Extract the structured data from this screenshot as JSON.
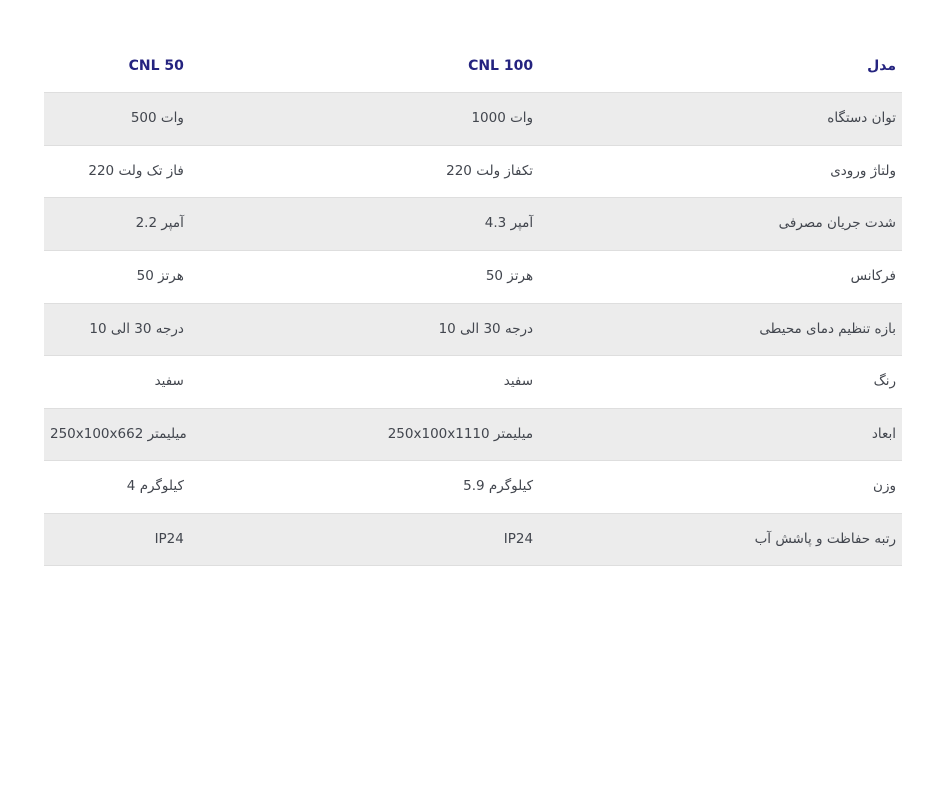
{
  "page": {
    "background": "#ffffff"
  },
  "spec_table": {
    "columns": [
      {
        "id": "model",
        "header": "مدل"
      },
      {
        "id": "cnl100",
        "header": "CNL 100"
      },
      {
        "id": "cnl50",
        "header": "CNL 50"
      }
    ],
    "rows": [
      {
        "model": "توان دستگاه",
        "cnl100": "1000 وات",
        "cnl50": "500 وات"
      },
      {
        "model": "ولتاژ ورودی",
        "cnl100": "220 ولت تکفاز",
        "cnl50": "220 ولت تک فاز"
      },
      {
        "model": "شدت جریان مصرفی",
        "cnl100": "4.3 آمپر",
        "cnl50": "2.2 آمپر"
      },
      {
        "model": "فرکانس",
        "cnl100": "50 هرتز",
        "cnl50": "50 هرتز"
      },
      {
        "model": "بازه تنظیم دمای محیطی",
        "cnl100": "10 الی 30 درجه",
        "cnl50": "10 الی 30 درجه"
      },
      {
        "model": "رنگ",
        "cnl100": "سفید",
        "cnl50": "سفید"
      },
      {
        "model": "ابعاد",
        "cnl100": "250x100x1110 میلیمتر",
        "cnl50": "250x100x662 میلیمتر"
      },
      {
        "model": "وزن",
        "cnl100": "5.9 کیلوگرم",
        "cnl50": "4 کیلوگرم"
      },
      {
        "model": "رتبه حفاظت و پاشش آب",
        "cnl100": "IP24",
        "cnl50": "IP24"
      }
    ],
    "colors": {
      "header_text": "#24237f",
      "body_text": "#42464e",
      "alt_row_bg": "#ececec",
      "row_border": "#dedede"
    }
  }
}
